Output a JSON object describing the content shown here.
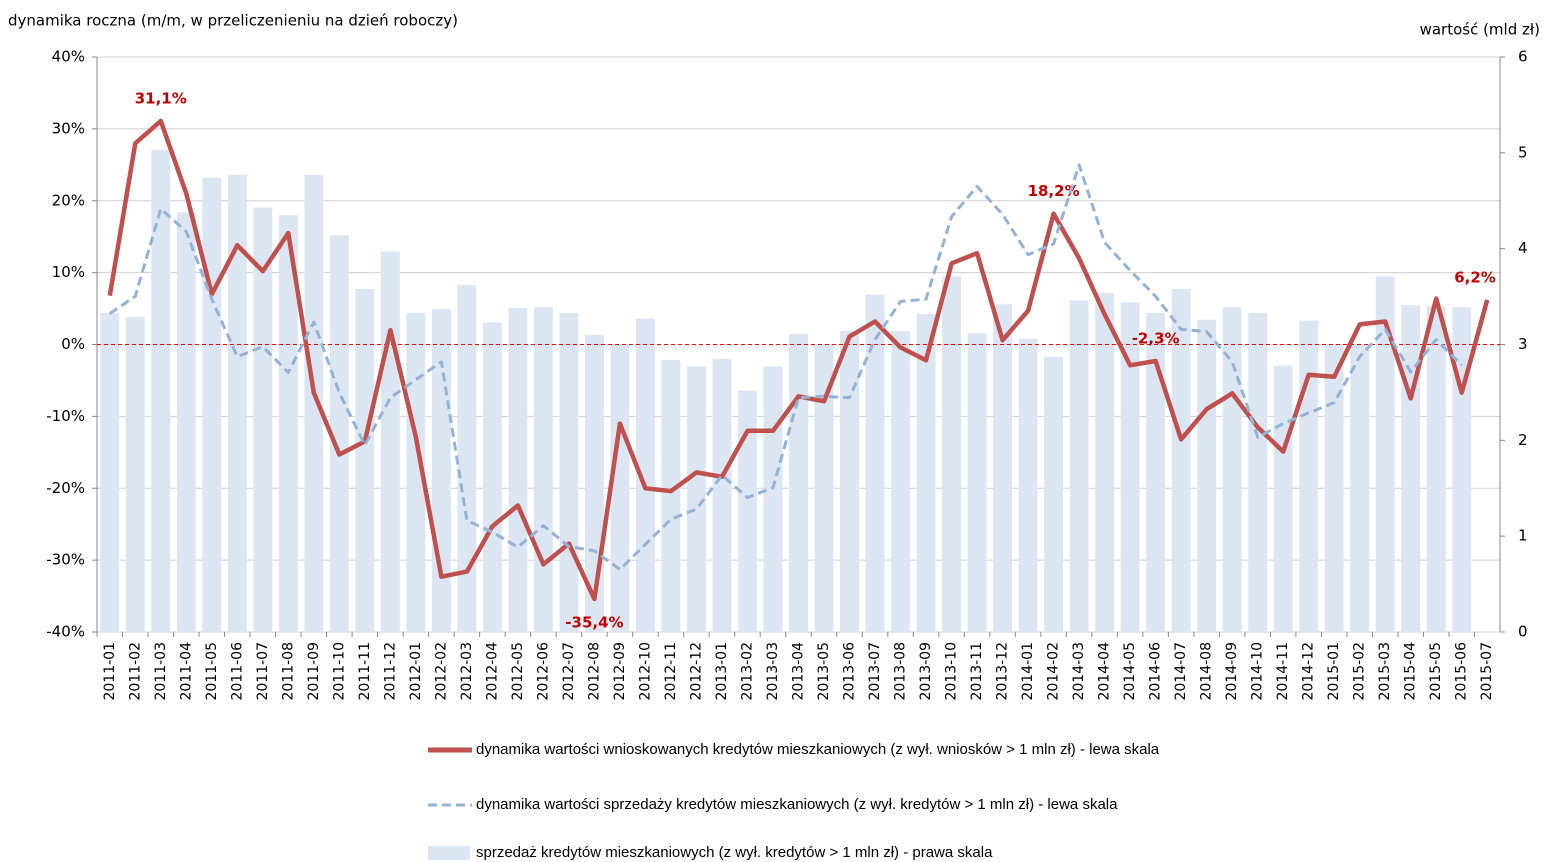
{
  "chart_data": {
    "type": "bar-line",
    "title": "dynamika roczna (m/m, w przeliczenieniu na dzień roboczy)",
    "y2_label": "wartość (mld zł)",
    "categories": [
      "2011-01",
      "2011-02",
      "2011-03",
      "2011-04",
      "2011-05",
      "2011-06",
      "2011-07",
      "2011-08",
      "2011-09",
      "2011-10",
      "2011-11",
      "2011-12",
      "2012-01",
      "2012-02",
      "2012-03",
      "2012-04",
      "2012-05",
      "2012-06",
      "2012-07",
      "2012-08",
      "2012-09",
      "2012-10",
      "2012-11",
      "2012-12",
      "2013-01",
      "2013-02",
      "2013-03",
      "2013-04",
      "2013-05",
      "2013-06",
      "2013-07",
      "2013-08",
      "2013-09",
      "2013-10",
      "2013-11",
      "2013-12",
      "2014-01",
      "2014-02",
      "2014-03",
      "2014-04",
      "2014-05",
      "2014-06",
      "2014-07",
      "2014-08",
      "2014-09",
      "2014-10",
      "2014-11",
      "2014-12",
      "2015-01",
      "2015-02",
      "2015-03",
      "2015-04",
      "2015-05",
      "2015-06",
      "2015-07"
    ],
    "series": [
      {
        "name": "sprzedaż kredytów mieszkaniowych (z wył. kredytów > 1 mln zł) - prawa skala",
        "kind": "bar",
        "axis": "y2",
        "color": "#dce6f2",
        "values": [
          3.33,
          3.29,
          5.03,
          4.38,
          4.74,
          4.77,
          4.43,
          4.35,
          4.77,
          4.14,
          3.58,
          3.97,
          3.33,
          3.37,
          3.62,
          3.23,
          3.38,
          3.39,
          3.33,
          3.1,
          3.0,
          3.27,
          2.84,
          2.77,
          2.85,
          2.52,
          2.77,
          3.11,
          3.0,
          3.14,
          3.52,
          3.14,
          3.32,
          3.71,
          3.12,
          3.42,
          3.06,
          2.87,
          3.46,
          3.54,
          3.44,
          3.33,
          3.58,
          3.26,
          3.39,
          3.33,
          2.78,
          3.25,
          3.0,
          3.0,
          3.71,
          3.41,
          3.4,
          3.39,
          null
        ]
      },
      {
        "name": "dynamika wartości wnioskowanych kredytów mieszkaniowych (z wył. wniosków > 1 mln zł) - lewa skala",
        "kind": "line",
        "axis": "y",
        "color": "#c0504d",
        "dashed": false,
        "values": [
          6.8,
          28,
          31.1,
          21,
          7.0,
          13.8,
          10.2,
          15.5,
          -6.7,
          -15.3,
          -13.5,
          2.0,
          -12.9,
          -32.3,
          -31.6,
          -25.3,
          -22.4,
          -30.6,
          -27.7,
          -35.4,
          -11,
          -20,
          -20.4,
          -17.8,
          -18.4,
          -12,
          -12,
          -7.2,
          -7.9,
          1.1,
          3.2,
          -0.4,
          -2.2,
          11.3,
          12.7,
          0.6,
          4.7,
          18.2,
          12,
          4.2,
          -2.9,
          -2.3,
          -13.2,
          -9,
          -6.8,
          -11.5,
          -14.9,
          -4.2,
          -4.5,
          2.8,
          3.2,
          -7.5,
          6.4,
          -6.7,
          6.2
        ],
        "value_labels": [
          null,
          null,
          "31,1%",
          null,
          null,
          null,
          null,
          null,
          null,
          null,
          null,
          null,
          null,
          null,
          null,
          null,
          null,
          null,
          null,
          "-35,4%",
          null,
          null,
          null,
          null,
          null,
          null,
          null,
          null,
          null,
          null,
          null,
          null,
          null,
          null,
          null,
          null,
          null,
          "18,2%",
          null,
          null,
          null,
          "-2,3%",
          null,
          null,
          null,
          null,
          null,
          null,
          null,
          null,
          null,
          null,
          null,
          null,
          "6,2%"
        ]
      },
      {
        "name": "dynamika wartości sprzedaży kredytów mieszkaniowych (z wył. kredytów > 1 mln zł) - lewa skala",
        "kind": "line",
        "axis": "y",
        "color": "#95b3d7",
        "dashed": true,
        "values": [
          4.3,
          6.7,
          18.9,
          15.7,
          6.3,
          -1.7,
          -0.3,
          -3.9,
          3.1,
          -6.7,
          -14,
          -7.4,
          -4.9,
          -2.4,
          -24.5,
          -26.1,
          -28.2,
          -25.2,
          -28.1,
          -28.7,
          -31.3,
          -27.8,
          -24.3,
          -22.9,
          -18.2,
          -21.3,
          -19.9,
          -7.4,
          -7.2,
          -7.4,
          0.7,
          6,
          6.3,
          17.8,
          22,
          18.1,
          12.5,
          14,
          25,
          14.2,
          10.3,
          6.7,
          2.1,
          1.8,
          -2.4,
          -12.9,
          -11,
          -9.5,
          -8.1,
          -1.7,
          2.1,
          -3.8,
          0.7,
          -2.9,
          null
        ]
      }
    ],
    "ylim": [
      -40,
      40
    ],
    "yticks": [
      {
        "value": -40,
        "label": "-40%"
      },
      {
        "value": -30,
        "label": "-30%"
      },
      {
        "value": -20,
        "label": "-20%"
      },
      {
        "value": -10,
        "label": "-10%"
      },
      {
        "value": 0,
        "label": "0%"
      },
      {
        "value": 10,
        "label": "10%"
      },
      {
        "value": 20,
        "label": "20%"
      },
      {
        "value": 30,
        "label": "30%"
      },
      {
        "value": 40,
        "label": "40%"
      }
    ],
    "y2lim": [
      0,
      6
    ],
    "y2ticks": [
      0,
      1,
      2,
      3,
      4,
      5,
      6
    ],
    "grid": true
  }
}
